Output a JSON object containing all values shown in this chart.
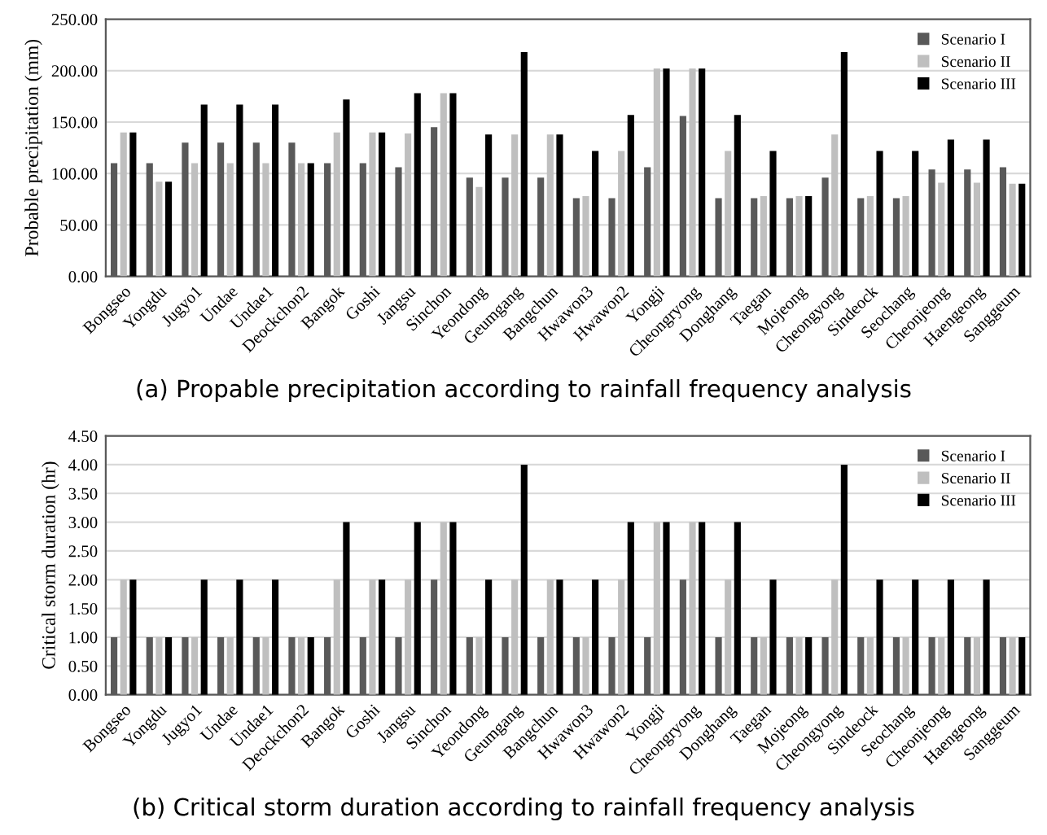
{
  "chart_data": [
    {
      "type": "bar",
      "title": "(a) Propable precipitation according to rainfall frequency analysis",
      "ylabel": "Probable precipitation (mm)",
      "categories": [
        "Bongseo",
        "Yongdu",
        "Jugyo1",
        "Undae",
        "Undae1",
        "Deockchon2",
        "Bangok",
        "Goshi",
        "Jangsu",
        "Sinchon",
        "Yeondong",
        "Geumgang",
        "Bangchun",
        "Hwawon3",
        "Hwawon2",
        "Yongji",
        "Cheongryong",
        "Donghang",
        "Taegan",
        "Mojeong",
        "Cheongyong",
        "Sindeock",
        "Seochang",
        "Cheonjeong",
        "Haengeong",
        "Sanggeum"
      ],
      "series": [
        {
          "name": "Scenario I",
          "color": "#595959",
          "values": [
            110,
            110,
            130,
            130,
            130,
            130,
            110,
            110,
            106,
            145,
            96,
            96,
            96,
            76,
            76,
            106,
            156,
            76,
            76,
            76,
            96,
            76,
            76,
            104,
            104,
            106
          ]
        },
        {
          "name": "Scenario II",
          "color": "#bfbfbf",
          "values": [
            140,
            92,
            110,
            110,
            110,
            110,
            140,
            140,
            139,
            178,
            87,
            138,
            138,
            78,
            122,
            202,
            202,
            122,
            78,
            78,
            138,
            78,
            78,
            91,
            91,
            90
          ]
        },
        {
          "name": "Scenario III",
          "color": "#000000",
          "values": [
            140,
            92,
            167,
            167,
            167,
            110,
            172,
            140,
            178,
            178,
            138,
            218,
            138,
            122,
            157,
            202,
            202,
            157,
            122,
            78,
            218,
            122,
            122,
            133,
            133,
            90
          ]
        }
      ],
      "ylim": [
        0,
        250
      ],
      "yticks": [
        {
          "value": 0,
          "label": "0.00"
        },
        {
          "value": 50,
          "label": "50.00"
        },
        {
          "value": 100,
          "label": "100.00"
        },
        {
          "value": 150,
          "label": "150.00"
        },
        {
          "value": 200,
          "label": "200.00"
        },
        {
          "value": 250,
          "label": "250.00"
        }
      ],
      "grid": "y",
      "legend": "top right"
    },
    {
      "type": "bar",
      "title": "(b) Critical storm duration according to rainfall frequency analysis",
      "ylabel": "Critical storm duration (hr)",
      "categories": [
        "Bongseo",
        "Yongdu",
        "Jugyo1",
        "Undae",
        "Undae1",
        "Deockchon2",
        "Bangok",
        "Goshi",
        "Jangsu",
        "Sinchon",
        "Yeondong",
        "Geumgang",
        "Bangchun",
        "Hwawon3",
        "Hwawon2",
        "Yongji",
        "Cheongryong",
        "Donghang",
        "Taegan",
        "Mojeong",
        "Cheongyong",
        "Sindeock",
        "Seochang",
        "Cheonjeong",
        "Haengeong",
        "Sanggeum"
      ],
      "series": [
        {
          "name": "Scenario I",
          "color": "#595959",
          "values": [
            1,
            1,
            1,
            1,
            1,
            1,
            1,
            1,
            1,
            2,
            1,
            1,
            1,
            1,
            1,
            1,
            2,
            1,
            1,
            1,
            1,
            1,
            1,
            1,
            1,
            1
          ]
        },
        {
          "name": "Scenario II",
          "color": "#bfbfbf",
          "values": [
            2,
            1,
            1,
            1,
            1,
            1,
            2,
            2,
            2,
            3,
            1,
            2,
            2,
            1,
            2,
            3,
            3,
            2,
            1,
            1,
            2,
            1,
            1,
            1,
            1,
            1
          ]
        },
        {
          "name": "Scenario III",
          "color": "#000000",
          "values": [
            2,
            1,
            2,
            2,
            2,
            1,
            3,
            2,
            3,
            3,
            2,
            4,
            2,
            2,
            3,
            3,
            3,
            3,
            2,
            1,
            4,
            2,
            2,
            2,
            2,
            1
          ]
        }
      ],
      "ylim": [
        0,
        4.5
      ],
      "yticks": [
        {
          "value": 0,
          "label": "0.00"
        },
        {
          "value": 0.5,
          "label": "0.50"
        },
        {
          "value": 1,
          "label": "1.00"
        },
        {
          "value": 1.5,
          "label": "1.50"
        },
        {
          "value": 2,
          "label": "2.00"
        },
        {
          "value": 2.5,
          "label": "2.50"
        },
        {
          "value": 3,
          "label": "3.00"
        },
        {
          "value": 3.5,
          "label": "3.50"
        },
        {
          "value": 4,
          "label": "4.00"
        },
        {
          "value": 4.5,
          "label": "4.50"
        }
      ],
      "grid": "y",
      "legend": "top right"
    }
  ]
}
